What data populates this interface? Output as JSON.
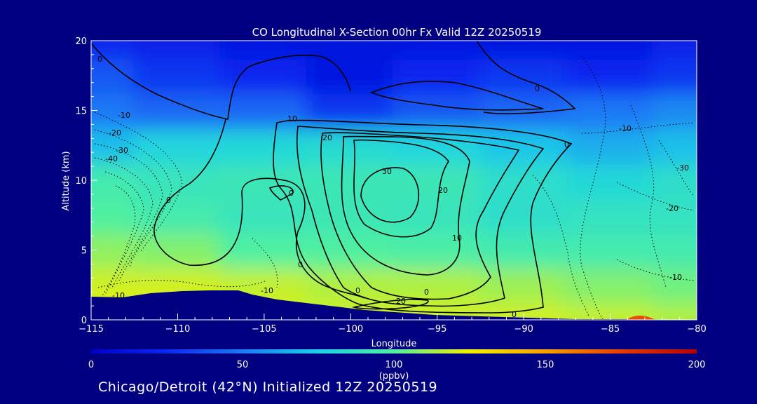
{
  "chart_data": {
    "type": "heatmap",
    "title": "CO Longitudinal X-Section 00hr  Fx Valid 12Z 20250519",
    "xlabel": "Longitude",
    "ylabel": "Altitude (km)",
    "xlim": [
      -115,
      -80
    ],
    "ylim": [
      0,
      20
    ],
    "x_ticks": [
      -115,
      -110,
      -105,
      -100,
      -95,
      -90,
      -85,
      -80
    ],
    "x_tick_labels": [
      "−115",
      "−110",
      "−105",
      "−100",
      "−95",
      "−90",
      "−85",
      "−80"
    ],
    "y_ticks": [
      0,
      5,
      10,
      15,
      20
    ],
    "colorbar": {
      "range": [
        0,
        200
      ],
      "ticks": [
        0,
        50,
        100,
        150,
        200
      ],
      "label": "(ppbv)",
      "stops": [
        {
          "v": 0,
          "color": "#0000c8"
        },
        {
          "v": 25,
          "color": "#0a28f0"
        },
        {
          "v": 50,
          "color": "#1e78f5"
        },
        {
          "v": 75,
          "color": "#19d2e6"
        },
        {
          "v": 100,
          "color": "#50f0a0"
        },
        {
          "v": 125,
          "color": "#f0f000"
        },
        {
          "v": 150,
          "color": "#f5a000"
        },
        {
          "v": 175,
          "color": "#e63c00"
        },
        {
          "v": 200,
          "color": "#b40000"
        }
      ]
    },
    "co_field": {
      "x": [
        -115,
        -110,
        -105,
        -100,
        -95,
        -90,
        -85,
        -80
      ],
      "y": [
        0,
        2.5,
        5,
        7.5,
        10,
        12.5,
        15,
        17.5,
        20
      ],
      "z": [
        [
          125,
          125,
          122,
          120,
          120,
          120,
          118,
          115
        ],
        [
          120,
          120,
          118,
          115,
          115,
          112,
          108,
          105
        ],
        [
          110,
          108,
          100,
          100,
          98,
          95,
          95,
          95
        ],
        [
          100,
          95,
          90,
          92,
          90,
          85,
          88,
          88
        ],
        [
          95,
          90,
          92,
          92,
          92,
          85,
          80,
          85
        ],
        [
          70,
          78,
          80,
          82,
          78,
          72,
          65,
          70
        ],
        [
          50,
          45,
          45,
          30,
          40,
          45,
          50,
          55
        ],
        [
          40,
          30,
          25,
          15,
          25,
          30,
          25,
          30
        ],
        [
          25,
          20,
          15,
          12,
          15,
          15,
          15,
          20
        ]
      ]
    },
    "contour_labels": [
      "0",
      "-10",
      "-20",
      "-30",
      "-40",
      "0",
      "0",
      "0",
      "0",
      "10",
      "20",
      "30",
      "20",
      "10",
      "0",
      "0",
      "-10",
      "-10",
      "-10",
      "-20",
      "-30",
      "-10",
      "0",
      "20",
      "0"
    ]
  },
  "footer": "Chicago/Detroit (42°N) Initialized 12Z 20250519"
}
